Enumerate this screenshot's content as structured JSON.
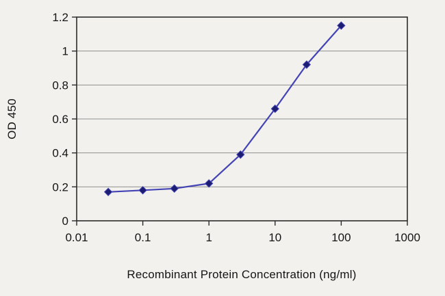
{
  "chart_data": {
    "type": "line",
    "xlabel": "Recombinant Protein Concentration (ng/ml)",
    "ylabel": "OD 450",
    "x_scale": "log",
    "xlim": [
      0.01,
      1000
    ],
    "ylim": [
      0,
      1.2
    ],
    "x_ticks": [
      0.01,
      0.1,
      1,
      10,
      100,
      1000
    ],
    "x_tick_labels": [
      "0.01",
      "0.1",
      "1",
      "10",
      "100",
      "1000"
    ],
    "y_ticks": [
      0,
      0.2,
      0.4,
      0.6,
      0.8,
      1,
      1.2
    ],
    "y_tick_labels": [
      "0",
      "0.2",
      "0.4",
      "0.6",
      "0.8",
      "1",
      "1.2"
    ],
    "grid": "horizontal",
    "legend": "none",
    "series": [
      {
        "name": "OD 450",
        "marker": "diamond",
        "x": [
          0.03,
          0.1,
          0.3,
          1,
          3,
          10,
          30,
          100
        ],
        "y": [
          0.17,
          0.18,
          0.19,
          0.22,
          0.39,
          0.66,
          0.92,
          1.15
        ]
      }
    ],
    "colors": {
      "line": "#4343b4",
      "marker": "#1c1c72",
      "grid": "#8f8f8d",
      "axis": "#2a2a2a",
      "text": "#141414",
      "background": "#f2f1ee"
    }
  }
}
